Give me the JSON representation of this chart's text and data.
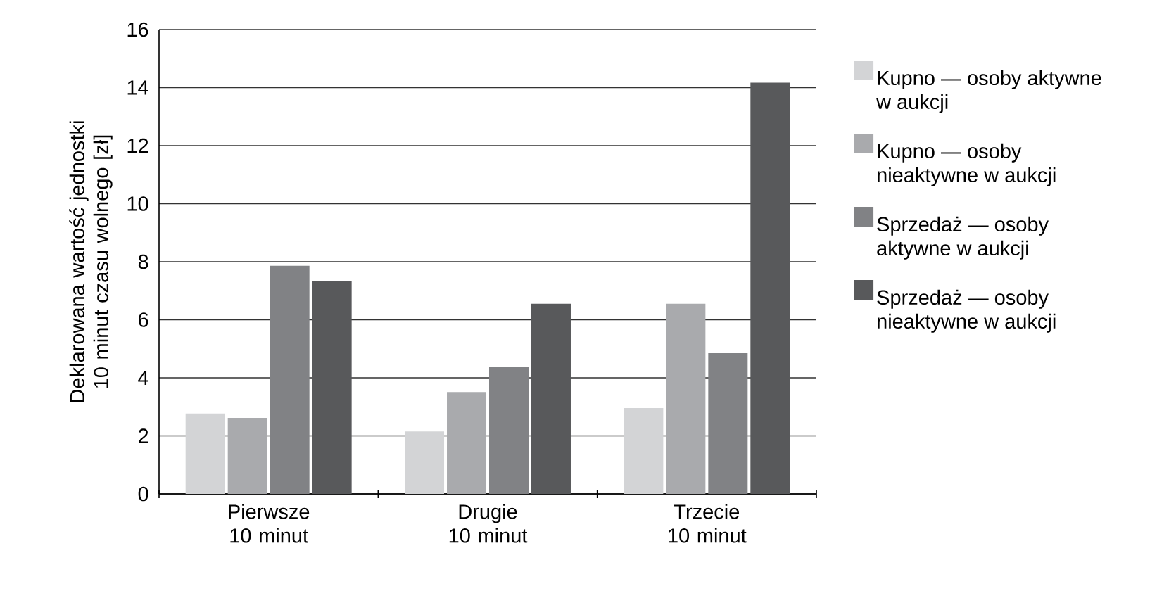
{
  "chart_data": {
    "type": "bar",
    "ylabel": "Deklarowana wartość jednostki 10 minut czasu wolnego [zł]",
    "categories": [
      "Pierwsze 10 minut",
      "Drugie 10 minut",
      "Trzecie 10 minut"
    ],
    "series": [
      {
        "name": "Kupno — osoby aktywne w aukcji",
        "color": "#d3d4d6",
        "values": [
          2.77,
          2.15,
          2.96
        ]
      },
      {
        "name": "Kupno — osoby nieaktywne w aukcji",
        "color": "#a9aaad",
        "values": [
          2.62,
          3.51,
          6.55
        ]
      },
      {
        "name": "Sprzedaż — osoby aktywne w aukcji",
        "color": "#818285",
        "values": [
          7.86,
          4.37,
          4.85
        ]
      },
      {
        "name": "Sprzedaż — osoby nieaktywne w aukcji",
        "color": "#58595b",
        "values": [
          7.33,
          6.55,
          14.17
        ]
      }
    ],
    "ylim": [
      0,
      16
    ],
    "yticks": [
      0,
      2,
      4,
      6,
      8,
      10,
      12,
      14,
      16
    ],
    "grid": "y",
    "legend": "right"
  }
}
